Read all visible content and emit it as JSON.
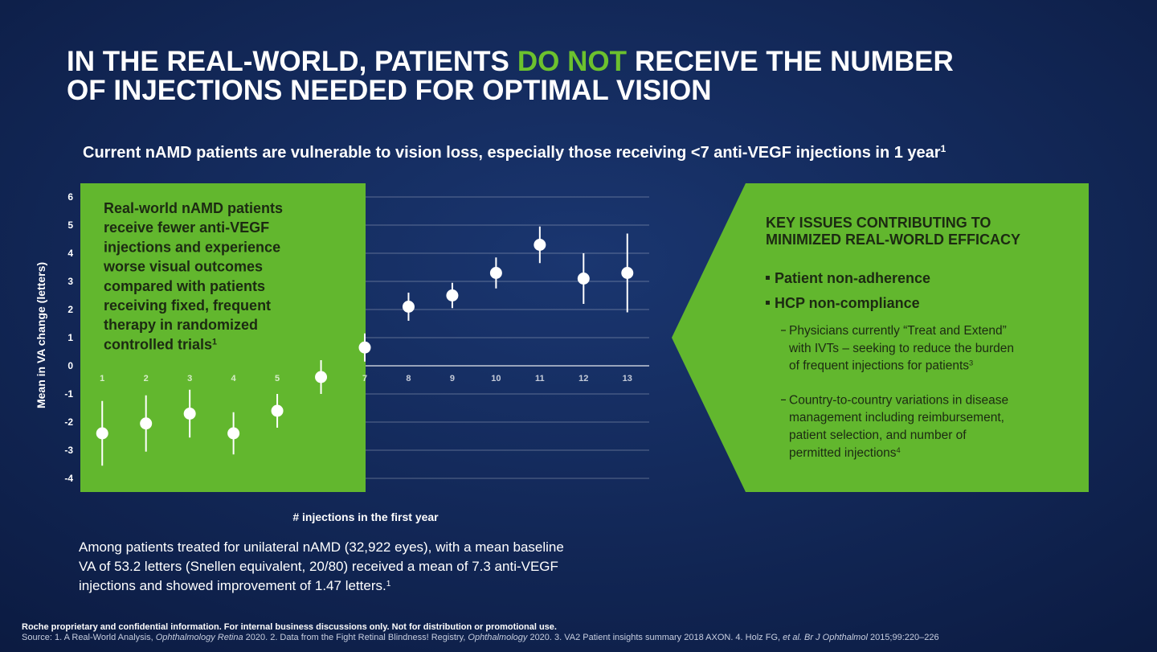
{
  "title": {
    "line1_start": "IN THE REAL-WORLD, PATIENTS",
    "highlight": "DO NOT",
    "line1_end": "RECEIVE THE NUMBER",
    "line2": "OF INJECTIONS NEEDED FOR OPTIMAL VISION"
  },
  "subtitle": {
    "text": "Current nAMD patients are vulnerable to vision loss, especially those receiving <7 anti-VEGF injections in 1 year",
    "ref": "1"
  },
  "chart_data": {
    "type": "errorbar",
    "x": [
      1,
      2,
      3,
      4,
      5,
      6,
      7,
      8,
      9,
      10,
      11,
      12,
      13
    ],
    "values": [
      -2.4,
      -2.05,
      -1.7,
      -2.4,
      -1.6,
      -0.4,
      0.65,
      2.1,
      2.5,
      3.3,
      4.3,
      3.1,
      3.3
    ],
    "errors": [
      1.15,
      1.0,
      0.85,
      0.75,
      0.6,
      0.6,
      0.5,
      0.5,
      0.45,
      0.55,
      0.65,
      0.9,
      1.4
    ],
    "color": "#ffffff",
    "xlim": [
      0.5,
      13.5
    ],
    "ylim": [
      -4.5,
      6.5
    ],
    "yticks": [
      -4,
      -3,
      -2,
      -1,
      0,
      1,
      2,
      3,
      4,
      5,
      6
    ],
    "grid": true,
    "xlabel": "# injections in the first year",
    "ylabel": "Mean in VA change (letters)"
  },
  "callout": {
    "lines": [
      "Real-world nAMD patients",
      "receive fewer anti-VEGF",
      "injections and experience",
      "worse visual outcomes",
      "compared with patients",
      "receiving fixed, frequent",
      "therapy in randomized",
      "controlled trials"
    ],
    "ref": "1"
  },
  "key_issues": {
    "title_lines": [
      "KEY ISSUES CONTRIBUTING TO",
      "MINIMIZED REAL-WORLD EFFICACY"
    ],
    "bullets": [
      "Patient non-adherence",
      "HCP non-compliance"
    ],
    "sub_items": [
      {
        "lines": [
          "Physicians currently “Treat and Extend”",
          "with IVTs – seeking to reduce the burden",
          "of frequent injections for patients"
        ],
        "ref": "3"
      },
      {
        "lines": [
          "Country-to-country variations in disease",
          "management including reimbursement,",
          "patient selection, and number of",
          "permitted injections"
        ],
        "ref": "4"
      }
    ]
  },
  "summary": {
    "lines": [
      "Among patients treated for unilateral nAMD (32,922 eyes), with a mean baseline",
      "VA of 53.2 letters (Snellen equivalent, 20/80) received a mean of 7.3 anti-VEGF",
      "injections and showed improvement of 1.47 letters."
    ],
    "ref": "1"
  },
  "footer": {
    "disclaimer": "Roche proprietary and confidential information. For internal business discussions only. Not for distribution or promotional use.",
    "source": [
      {
        "text": "Source: 1. A Real-World Analysis, ",
        "italic": false
      },
      {
        "text": "Ophthalmology Retina",
        "italic": true
      },
      {
        "text": " 2020. 2. Data from the Fight Retinal Blindness! Registry, ",
        "italic": false
      },
      {
        "text": "Ophthalmology",
        "italic": true
      },
      {
        "text": " 2020. 3. VA2 Patient insights summary 2018 AXON. 4. Holz FG, ",
        "italic": false
      },
      {
        "text": "et al. Br J Ophthalmol",
        "italic": true
      },
      {
        "text": " 2015;99:220–226",
        "italic": false
      }
    ]
  }
}
